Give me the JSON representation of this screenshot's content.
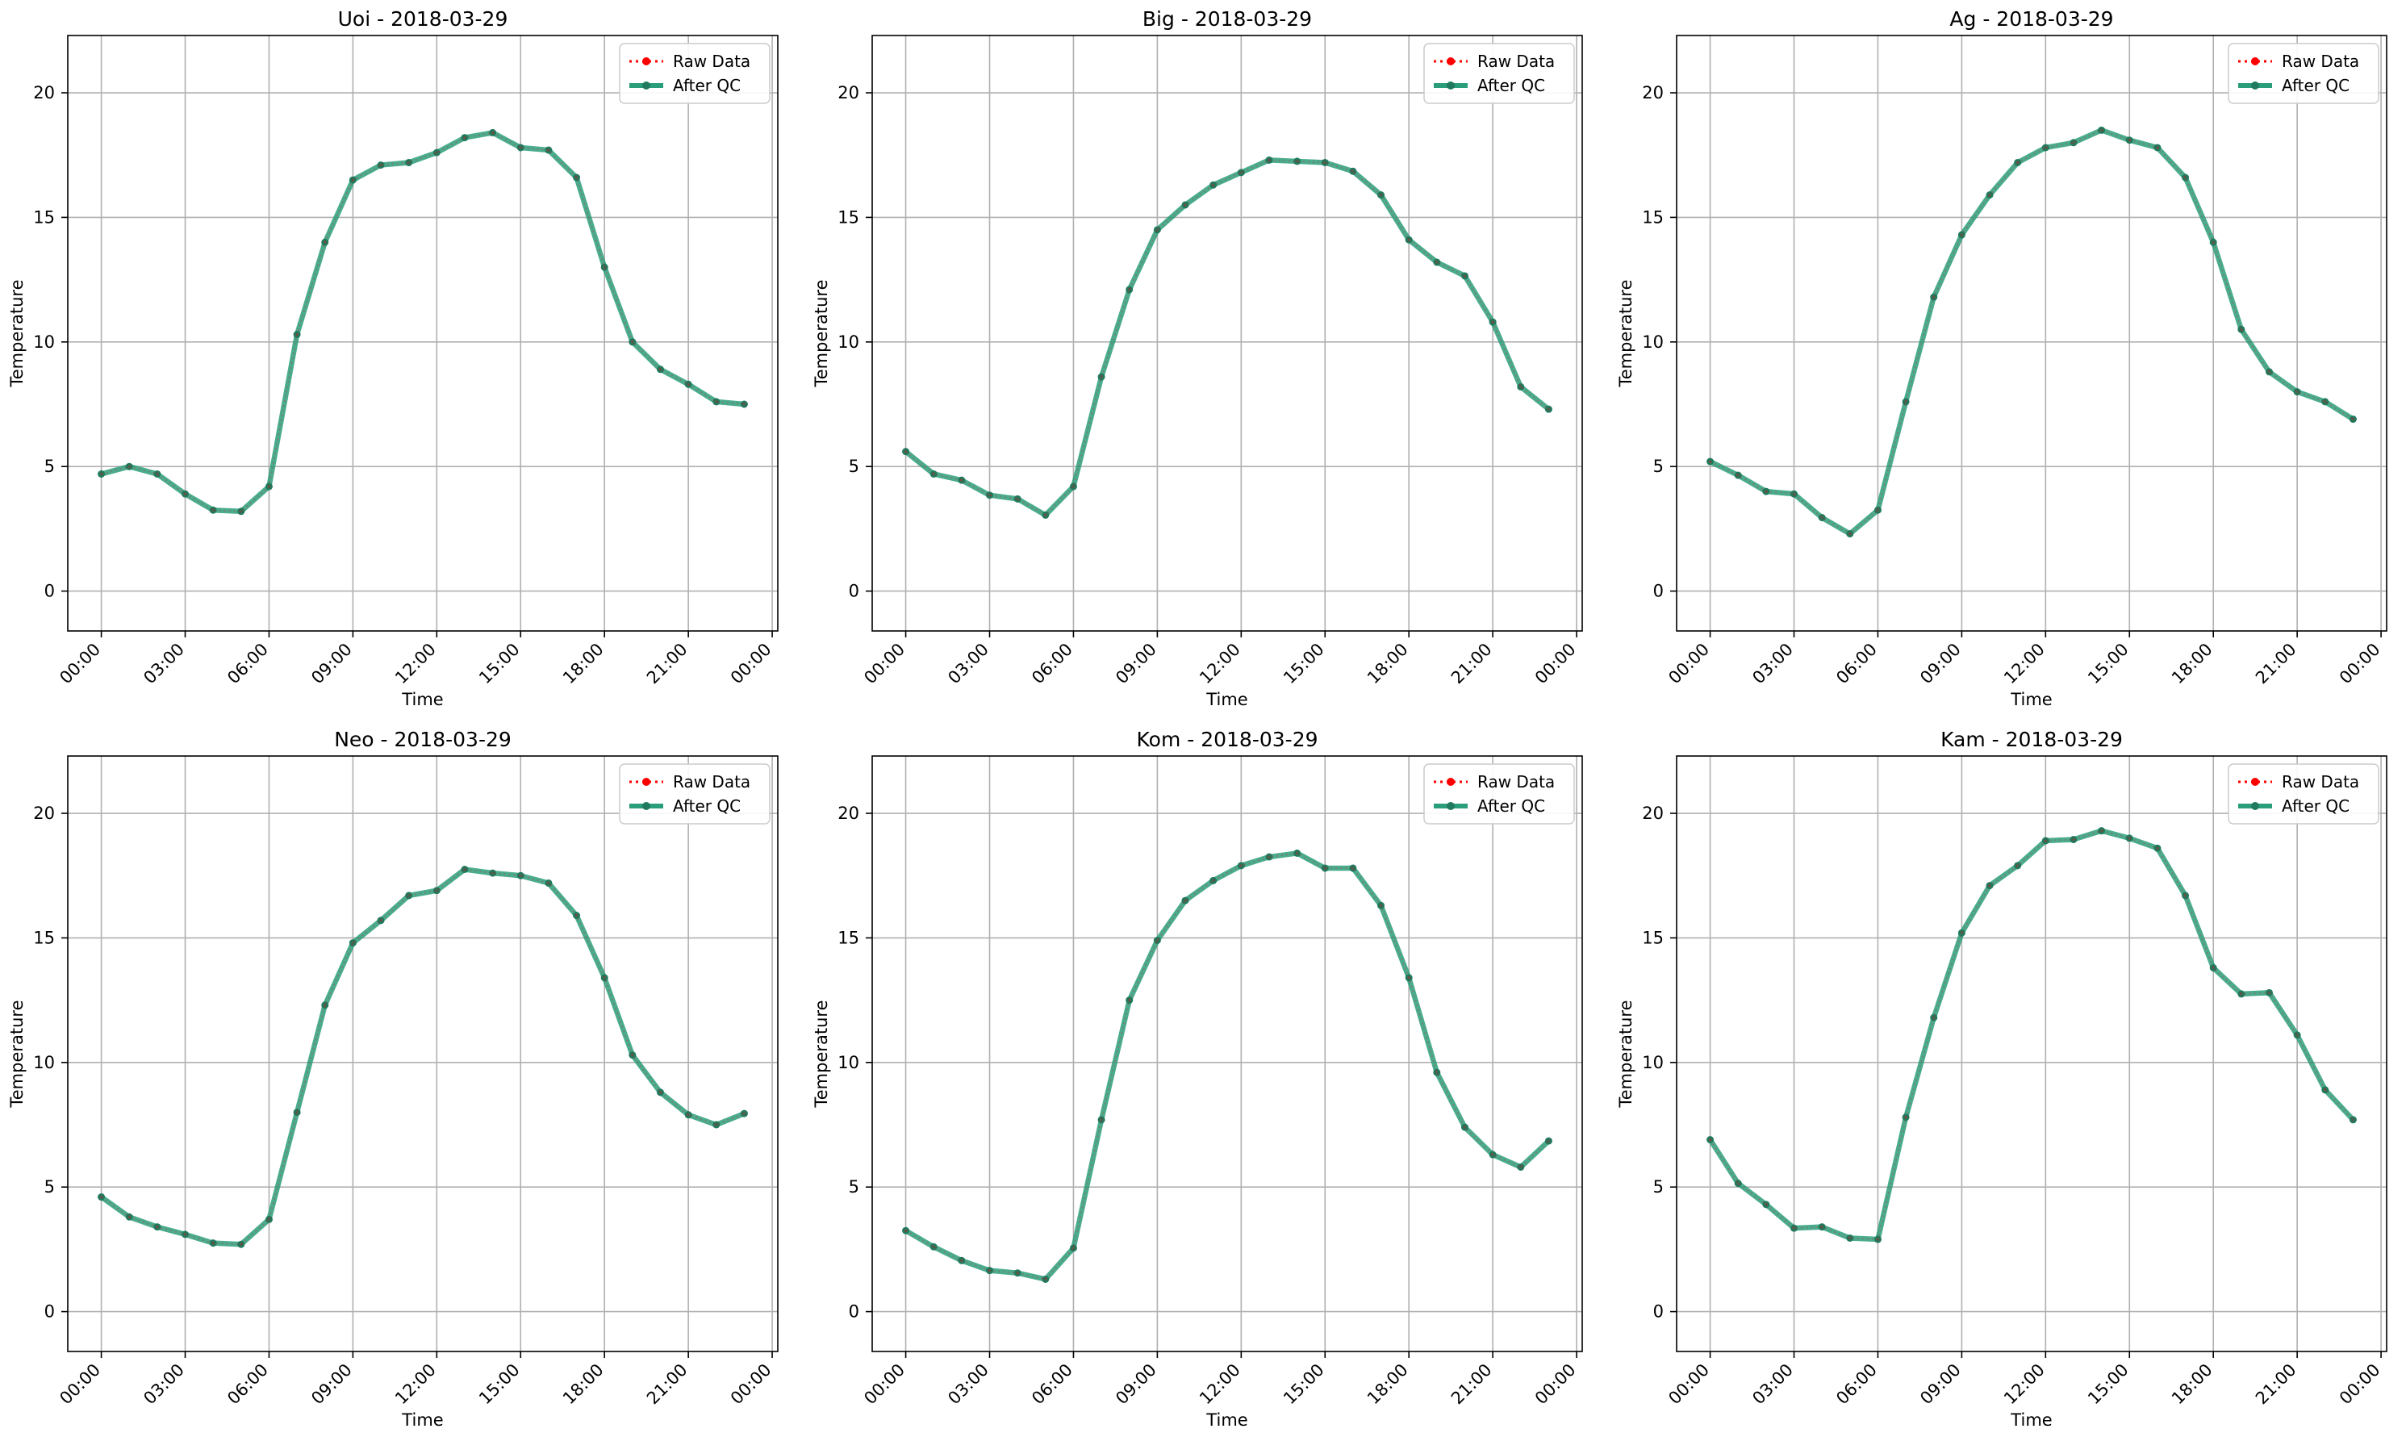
{
  "colors": {
    "raw": "#ff0000",
    "qc": "#2a9d7a",
    "qc_point": "#207a60",
    "grid": "#b0b0b0",
    "axis": "#000000"
  },
  "legend_labels": {
    "raw": "Raw Data",
    "qc": "After QC"
  },
  "chart_data": [
    {
      "type": "line",
      "title": "Uoi - 2018-03-29",
      "xlabel": "Time",
      "ylabel": "Temperature",
      "x_tick_labels": [
        "00:00",
        "03:00",
        "06:00",
        "09:00",
        "12:00",
        "15:00",
        "18:00",
        "21:00",
        "00:00"
      ],
      "y_ticks": [
        0,
        5,
        10,
        15,
        20
      ],
      "x": [
        "00:00",
        "01:00",
        "02:00",
        "03:00",
        "04:00",
        "05:00",
        "06:00",
        "07:00",
        "08:00",
        "09:00",
        "10:00",
        "11:00",
        "12:00",
        "13:00",
        "14:00",
        "15:00",
        "16:00",
        "17:00",
        "18:00",
        "19:00",
        "20:00",
        "21:00",
        "22:00",
        "23:00"
      ],
      "ylim": [
        -1.6,
        22.3
      ],
      "xlim_hours": [
        -1.2,
        24.2
      ],
      "grid": true,
      "legend": "upper-right",
      "series": [
        {
          "name": "Raw Data",
          "values": [
            4.7,
            5.0,
            4.7,
            3.9,
            3.25,
            3.2,
            4.2,
            10.3,
            14.0,
            16.5,
            17.1,
            17.2,
            17.6,
            18.2,
            18.4,
            17.8,
            17.7,
            16.6,
            13.0,
            10.0,
            8.9,
            8.3,
            7.6,
            7.5
          ]
        },
        {
          "name": "After QC",
          "values": [
            4.7,
            5.0,
            4.7,
            3.9,
            3.25,
            3.2,
            4.2,
            10.3,
            14.0,
            16.5,
            17.1,
            17.2,
            17.6,
            18.2,
            18.4,
            17.8,
            17.7,
            16.6,
            13.0,
            10.0,
            8.9,
            8.3,
            7.6,
            7.5
          ]
        }
      ]
    },
    {
      "type": "line",
      "title": "Big - 2018-03-29",
      "xlabel": "Time",
      "ylabel": "Temperature",
      "x_tick_labels": [
        "00:00",
        "03:00",
        "06:00",
        "09:00",
        "12:00",
        "15:00",
        "18:00",
        "21:00",
        "00:00"
      ],
      "y_ticks": [
        0,
        5,
        10,
        15,
        20
      ],
      "x": [
        "00:00",
        "01:00",
        "02:00",
        "03:00",
        "04:00",
        "05:00",
        "06:00",
        "07:00",
        "08:00",
        "09:00",
        "10:00",
        "11:00",
        "12:00",
        "13:00",
        "14:00",
        "15:00",
        "16:00",
        "17:00",
        "18:00",
        "19:00",
        "20:00",
        "21:00",
        "22:00",
        "23:00"
      ],
      "ylim": [
        -1.6,
        22.3
      ],
      "xlim_hours": [
        -1.2,
        24.2
      ],
      "grid": true,
      "legend": "upper-right",
      "series": [
        {
          "name": "Raw Data",
          "values": [
            5.6,
            4.7,
            4.45,
            3.85,
            3.7,
            3.05,
            4.2,
            8.6,
            12.1,
            14.5,
            15.5,
            16.3,
            16.8,
            17.3,
            17.25,
            17.2,
            16.85,
            15.9,
            14.1,
            13.2,
            12.65,
            10.8,
            8.2,
            7.3
          ]
        },
        {
          "name": "After QC",
          "values": [
            5.6,
            4.7,
            4.45,
            3.85,
            3.7,
            3.05,
            4.2,
            8.6,
            12.1,
            14.5,
            15.5,
            16.3,
            16.8,
            17.3,
            17.25,
            17.2,
            16.85,
            15.9,
            14.1,
            13.2,
            12.65,
            10.8,
            8.2,
            7.3
          ]
        }
      ]
    },
    {
      "type": "line",
      "title": "Ag - 2018-03-29",
      "xlabel": "Time",
      "ylabel": "Temperature",
      "x_tick_labels": [
        "00:00",
        "03:00",
        "06:00",
        "09:00",
        "12:00",
        "15:00",
        "18:00",
        "21:00",
        "00:00"
      ],
      "y_ticks": [
        0,
        5,
        10,
        15,
        20
      ],
      "x": [
        "00:00",
        "01:00",
        "02:00",
        "03:00",
        "04:00",
        "05:00",
        "06:00",
        "07:00",
        "08:00",
        "09:00",
        "10:00",
        "11:00",
        "12:00",
        "13:00",
        "14:00",
        "15:00",
        "16:00",
        "17:00",
        "18:00",
        "19:00",
        "20:00",
        "21:00",
        "22:00",
        "23:00"
      ],
      "ylim": [
        -1.6,
        22.3
      ],
      "xlim_hours": [
        -1.2,
        24.2
      ],
      "grid": true,
      "legend": "upper-right",
      "series": [
        {
          "name": "Raw Data",
          "values": [
            5.2,
            4.65,
            4.0,
            3.9,
            2.95,
            2.3,
            3.25,
            7.6,
            11.8,
            14.3,
            15.9,
            17.2,
            17.8,
            18.0,
            18.5,
            18.1,
            17.8,
            16.6,
            14.0,
            10.5,
            8.8,
            8.0,
            7.6,
            6.9
          ]
        },
        {
          "name": "After QC",
          "values": [
            5.2,
            4.65,
            4.0,
            3.9,
            2.95,
            2.3,
            3.25,
            7.6,
            11.8,
            14.3,
            15.9,
            17.2,
            17.8,
            18.0,
            18.5,
            18.1,
            17.8,
            16.6,
            14.0,
            10.5,
            8.8,
            8.0,
            7.6,
            6.9
          ]
        }
      ]
    },
    {
      "type": "line",
      "title": "Neo - 2018-03-29",
      "xlabel": "Time",
      "ylabel": "Temperature",
      "x_tick_labels": [
        "00:00",
        "03:00",
        "06:00",
        "09:00",
        "12:00",
        "15:00",
        "18:00",
        "21:00",
        "00:00"
      ],
      "y_ticks": [
        0,
        5,
        10,
        15,
        20
      ],
      "x": [
        "00:00",
        "01:00",
        "02:00",
        "03:00",
        "04:00",
        "05:00",
        "06:00",
        "07:00",
        "08:00",
        "09:00",
        "10:00",
        "11:00",
        "12:00",
        "13:00",
        "14:00",
        "15:00",
        "16:00",
        "17:00",
        "18:00",
        "19:00",
        "20:00",
        "21:00",
        "22:00",
        "23:00"
      ],
      "ylim": [
        -1.6,
        22.3
      ],
      "xlim_hours": [
        -1.2,
        24.2
      ],
      "grid": true,
      "legend": "upper-right",
      "series": [
        {
          "name": "Raw Data",
          "values": [
            4.6,
            3.8,
            3.4,
            3.1,
            2.75,
            2.7,
            3.7,
            8.0,
            12.3,
            14.8,
            15.7,
            16.7,
            16.9,
            17.75,
            17.6,
            17.5,
            17.2,
            15.9,
            13.4,
            10.3,
            8.8,
            7.9,
            7.5,
            7.95
          ]
        },
        {
          "name": "After QC",
          "values": [
            4.6,
            3.8,
            3.4,
            3.1,
            2.75,
            2.7,
            3.7,
            8.0,
            12.3,
            14.8,
            15.7,
            16.7,
            16.9,
            17.75,
            17.6,
            17.5,
            17.2,
            15.9,
            13.4,
            10.3,
            8.8,
            7.9,
            7.5,
            7.95
          ]
        }
      ]
    },
    {
      "type": "line",
      "title": "Kom - 2018-03-29",
      "xlabel": "Time",
      "ylabel": "Temperature",
      "x_tick_labels": [
        "00:00",
        "03:00",
        "06:00",
        "09:00",
        "12:00",
        "15:00",
        "18:00",
        "21:00",
        "00:00"
      ],
      "y_ticks": [
        0,
        5,
        10,
        15,
        20
      ],
      "x": [
        "00:00",
        "01:00",
        "02:00",
        "03:00",
        "04:00",
        "05:00",
        "06:00",
        "07:00",
        "08:00",
        "09:00",
        "10:00",
        "11:00",
        "12:00",
        "13:00",
        "14:00",
        "15:00",
        "16:00",
        "17:00",
        "18:00",
        "19:00",
        "20:00",
        "21:00",
        "22:00",
        "23:00"
      ],
      "ylim": [
        -1.6,
        22.3
      ],
      "xlim_hours": [
        -1.2,
        24.2
      ],
      "grid": true,
      "legend": "upper-right",
      "series": [
        {
          "name": "Raw Data",
          "values": [
            3.25,
            2.6,
            2.05,
            1.65,
            1.55,
            1.3,
            2.55,
            7.7,
            12.5,
            14.9,
            16.5,
            17.3,
            17.9,
            18.25,
            18.4,
            17.8,
            17.8,
            16.3,
            13.4,
            9.6,
            7.4,
            6.3,
            5.8,
            6.85
          ]
        },
        {
          "name": "After QC",
          "values": [
            3.25,
            2.6,
            2.05,
            1.65,
            1.55,
            1.3,
            2.55,
            7.7,
            12.5,
            14.9,
            16.5,
            17.3,
            17.9,
            18.25,
            18.4,
            17.8,
            17.8,
            16.3,
            13.4,
            9.6,
            7.4,
            6.3,
            5.8,
            6.85
          ]
        }
      ]
    },
    {
      "type": "line",
      "title": "Kam - 2018-03-29",
      "xlabel": "Time",
      "ylabel": "Temperature",
      "x_tick_labels": [
        "00:00",
        "03:00",
        "06:00",
        "09:00",
        "12:00",
        "15:00",
        "18:00",
        "21:00",
        "00:00"
      ],
      "y_ticks": [
        0,
        5,
        10,
        15,
        20
      ],
      "x": [
        "00:00",
        "01:00",
        "02:00",
        "03:00",
        "04:00",
        "05:00",
        "06:00",
        "07:00",
        "08:00",
        "09:00",
        "10:00",
        "11:00",
        "12:00",
        "13:00",
        "14:00",
        "15:00",
        "16:00",
        "17:00",
        "18:00",
        "19:00",
        "20:00",
        "21:00",
        "22:00",
        "23:00"
      ],
      "ylim": [
        -1.6,
        22.3
      ],
      "xlim_hours": [
        -1.2,
        24.2
      ],
      "grid": true,
      "legend": "upper-right",
      "series": [
        {
          "name": "Raw Data",
          "values": [
            6.9,
            5.15,
            4.3,
            3.35,
            3.4,
            2.95,
            2.9,
            7.8,
            11.8,
            15.2,
            17.1,
            17.9,
            18.9,
            18.95,
            19.3,
            19.0,
            18.6,
            16.7,
            13.8,
            12.75,
            12.8,
            11.1,
            8.9,
            7.7
          ]
        },
        {
          "name": "After QC",
          "values": [
            6.9,
            5.15,
            4.3,
            3.35,
            3.4,
            2.95,
            2.9,
            7.8,
            11.8,
            15.2,
            17.1,
            17.9,
            18.9,
            18.95,
            19.3,
            19.0,
            18.6,
            16.7,
            13.8,
            12.75,
            12.8,
            11.1,
            8.9,
            7.7
          ]
        }
      ]
    }
  ]
}
